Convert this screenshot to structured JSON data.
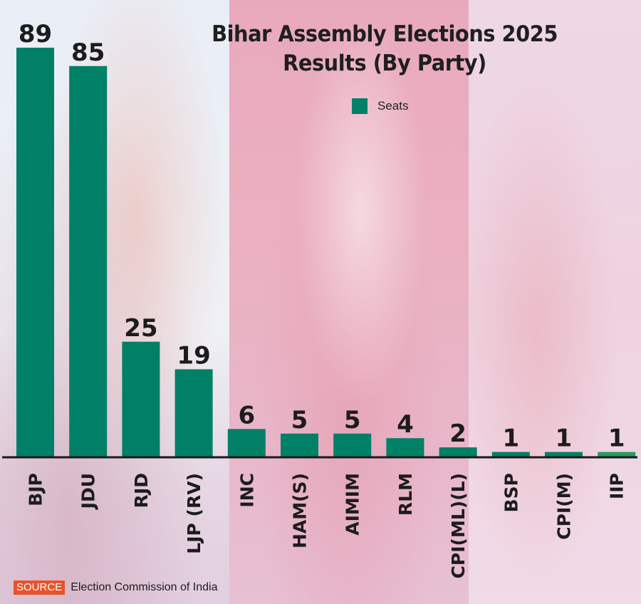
{
  "chart_data": {
    "type": "bar",
    "title": "Bihar Assembly Elections 2025 Results (By Party)",
    "title_lines": [
      "Bihar Assembly Elections 2025",
      "Results (By Party)"
    ],
    "xlabel": "",
    "ylabel": "",
    "categories": [
      "BJP",
      "JDU",
      "RJD",
      "LJP (RV)",
      "INC",
      "HAM(S)",
      "AIMIM",
      "RLM",
      "CPI(ML)(L)",
      "BSP",
      "CPI(M)",
      "IIP"
    ],
    "series": [
      {
        "name": "Seats",
        "color": "#008066",
        "values": [
          89,
          85,
          25,
          19,
          6,
          5,
          5,
          4,
          2,
          1,
          1,
          1
        ]
      }
    ],
    "highlight_colors": {
      "IIP": "#2a9a5c"
    },
    "ylim": [
      0,
      89
    ],
    "grid": false,
    "yaxis_visible": false,
    "data_labels": true,
    "legend": {
      "position": "top-center",
      "entries": [
        "Seats"
      ]
    }
  },
  "source": {
    "badge": "SOURCE",
    "text": "Election Commission of India"
  },
  "colors": {
    "bar": "#008066",
    "source_badge": "#e8532b",
    "text": "#1c1c1c"
  }
}
